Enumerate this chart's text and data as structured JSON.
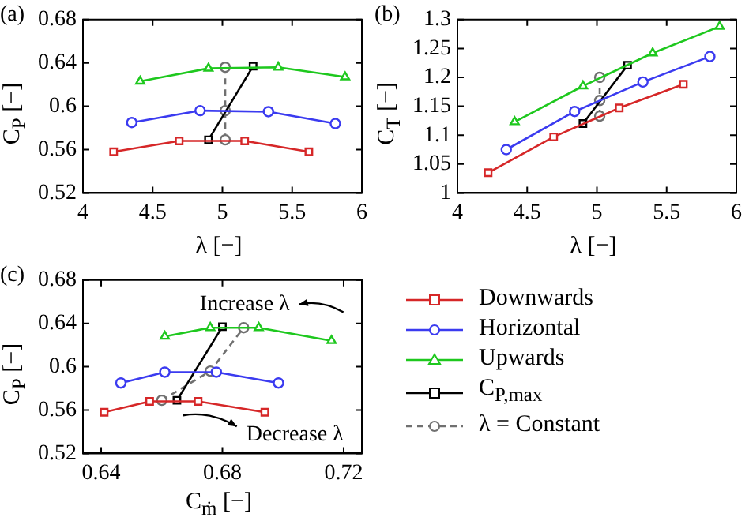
{
  "chart_data": [
    {
      "type": "line",
      "title": "(a)",
      "xlabel": "λ [−]",
      "ylabel": "C$_{P}$ [−]",
      "xlim": [
        4,
        6
      ],
      "xticks": [
        4,
        4.5,
        5,
        5.5,
        6
      ],
      "ylim": [
        0.52,
        0.68
      ],
      "yticks": [
        0.52,
        0.56,
        0.6,
        0.64,
        0.68
      ],
      "grid": false,
      "legend": false,
      "series": [
        {
          "color": "#d62728",
          "marker": "square",
          "line_style": "solid",
          "x": [
            4.22,
            4.69,
            5.16,
            5.62
          ],
          "values": [
            0.558,
            0.568,
            0.568,
            0.558
          ]
        },
        {
          "color": "#3b3bf0",
          "marker": "circle",
          "line_style": "solid",
          "x": [
            4.35,
            4.84,
            5.33,
            5.81
          ],
          "values": [
            0.585,
            0.596,
            0.595,
            0.584
          ]
        },
        {
          "color": "#1ec81e",
          "marker": "triangle",
          "line_style": "solid",
          "x": [
            4.41,
            4.9,
            5.4,
            5.88
          ],
          "values": [
            0.623,
            0.635,
            0.636,
            0.627
          ]
        },
        {
          "color": "#000000",
          "marker": "square",
          "line_style": "solid",
          "x": [
            4.9,
            5.22
          ],
          "values": [
            0.569,
            0.637
          ]
        },
        {
          "color": "#707070",
          "marker": "circle",
          "line_style": "dashed",
          "x": [
            5.02,
            5.02,
            5.02
          ],
          "values": [
            0.569,
            0.596,
            0.636
          ]
        }
      ]
    },
    {
      "type": "line",
      "title": "(b)",
      "xlabel": "λ [−]",
      "ylabel": "C$_{T}$ [−]",
      "xlim": [
        4,
        6
      ],
      "xticks": [
        4,
        4.5,
        5,
        5.5,
        6
      ],
      "ylim": [
        1,
        1.3
      ],
      "yticks": [
        1,
        1.05,
        1.1,
        1.15,
        1.2,
        1.25,
        1.3
      ],
      "grid": false,
      "legend": false,
      "series": [
        {
          "color": "#d62728",
          "marker": "square",
          "line_style": "solid",
          "x": [
            4.22,
            4.69,
            5.16,
            5.62
          ],
          "values": [
            1.035,
            1.097,
            1.147,
            1.188
          ]
        },
        {
          "color": "#3b3bf0",
          "marker": "circle",
          "line_style": "solid",
          "x": [
            4.35,
            4.84,
            5.33,
            5.81
          ],
          "values": [
            1.075,
            1.141,
            1.192,
            1.236
          ]
        },
        {
          "color": "#1ec81e",
          "marker": "triangle",
          "line_style": "solid",
          "x": [
            4.41,
            4.9,
            5.4,
            5.88
          ],
          "values": [
            1.123,
            1.185,
            1.242,
            1.288
          ]
        },
        {
          "color": "#000000",
          "marker": "square",
          "line_style": "solid",
          "x": [
            4.9,
            5.22
          ],
          "values": [
            1.12,
            1.221
          ]
        },
        {
          "color": "#707070",
          "marker": "circle",
          "line_style": "dashed",
          "x": [
            5.02,
            5.02,
            5.02
          ],
          "values": [
            1.133,
            1.16,
            1.2
          ]
        }
      ]
    },
    {
      "type": "line",
      "title": "(c)",
      "xlabel": "C$_{ṁ}$ [−]",
      "ylabel": "C$_{P}$ [−]",
      "xlim": [
        0.634,
        0.726
      ],
      "xticks": [
        0.64,
        0.68,
        0.72
      ],
      "ylim": [
        0.52,
        0.68
      ],
      "yticks": [
        0.52,
        0.56,
        0.6,
        0.64,
        0.68
      ],
      "grid": false,
      "legend": "right",
      "annotations": [
        "Increase λ",
        "Decrease λ"
      ],
      "series": [
        {
          "name": "Downwards",
          "color": "#d62728",
          "marker": "square",
          "line_style": "solid",
          "x": [
            0.641,
            0.656,
            0.672,
            0.694
          ],
          "values": [
            0.558,
            0.568,
            0.568,
            0.558
          ]
        },
        {
          "name": "Horizontal",
          "color": "#3b3bf0",
          "marker": "circle",
          "line_style": "solid",
          "x": [
            0.6465,
            0.661,
            0.678,
            0.6985
          ],
          "values": [
            0.585,
            0.595,
            0.595,
            0.585
          ]
        },
        {
          "name": "Upwards",
          "color": "#1ec81e",
          "marker": "triangle",
          "line_style": "solid",
          "x": [
            0.661,
            0.676,
            0.692,
            0.716
          ],
          "values": [
            0.628,
            0.636,
            0.636,
            0.624
          ]
        },
        {
          "name": "C$_{P,max}$",
          "color": "#000000",
          "marker": "square",
          "line_style": "solid",
          "x": [
            0.665,
            0.68
          ],
          "values": [
            0.569,
            0.637
          ]
        },
        {
          "name": "λ = Constant",
          "color": "#707070",
          "marker": "circle",
          "line_style": "dashed",
          "x": [
            0.66,
            0.676,
            0.687
          ],
          "values": [
            0.569,
            0.596,
            0.636
          ]
        }
      ]
    }
  ]
}
